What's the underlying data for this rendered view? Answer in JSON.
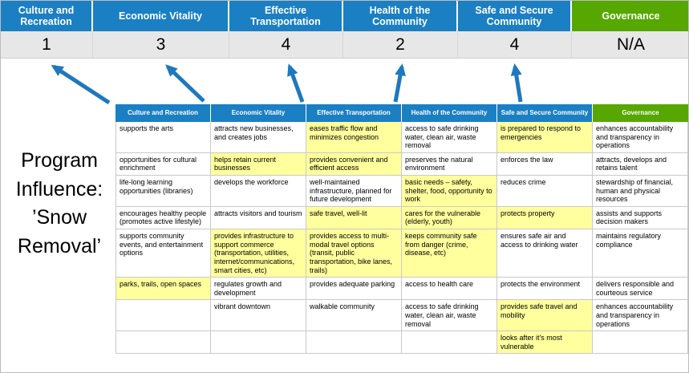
{
  "colors": {
    "header_blue": "#1b7fc3",
    "header_green": "#56a700",
    "highlight": "#ffff9d",
    "score_band_bg": "#e7e7e7",
    "arrow": "#1e78bd",
    "grid_line": "#c9c9c9"
  },
  "program": {
    "lines": [
      "Program",
      "Influence:",
      "’Snow",
      "Removal’"
    ]
  },
  "summary": {
    "columns": [
      {
        "label": "Culture and Recreation",
        "score": "1"
      },
      {
        "label": "Economic Vitality",
        "score": "3"
      },
      {
        "label": "Effective Transportation",
        "score": "4"
      },
      {
        "label": "Health of the Community",
        "score": "2"
      },
      {
        "label": "Safe and Secure Community",
        "score": "4"
      },
      {
        "label": "Governance",
        "score": "N/A"
      }
    ]
  },
  "matrix": {
    "headers": [
      {
        "label": "Culture and Recreation",
        "color": "blue"
      },
      {
        "label": "Economic Vitality",
        "color": "blue"
      },
      {
        "label": "Effective Transportation",
        "color": "blue"
      },
      {
        "label": "Health of the Community",
        "color": "blue"
      },
      {
        "label": "Safe and Secure Community",
        "color": "blue"
      },
      {
        "label": "Governance",
        "color": "green"
      }
    ],
    "rows": [
      [
        {
          "t": "supports the arts",
          "h": false
        },
        {
          "t": "attracts new businesses, and creates jobs",
          "h": false
        },
        {
          "t": "eases traffic flow and minimizes congestion",
          "h": true
        },
        {
          "t": "access to safe drinking water, clean air, waste removal",
          "h": false
        },
        {
          "t": "is prepared to respond to emergencies",
          "h": true
        },
        {
          "t": "enhances accountability and transparency in operations",
          "h": false
        }
      ],
      [
        {
          "t": "opportunities for cultural enrichment",
          "h": false
        },
        {
          "t": "helps retain current businesses",
          "h": true
        },
        {
          "t": "provides convenient and efficient access",
          "h": true
        },
        {
          "t": "preserves the natural environment",
          "h": false
        },
        {
          "t": "enforces the law",
          "h": false
        },
        {
          "t": "attracts, develops and retains talent",
          "h": false
        }
      ],
      [
        {
          "t": "life-long learning opportunities (libraries)",
          "h": false
        },
        {
          "t": "develops the workforce",
          "h": false
        },
        {
          "t": "well-maintained infrastructure, planned for future development",
          "h": false
        },
        {
          "t": "basic needs – safety, shelter, food, opportunity to work",
          "h": true
        },
        {
          "t": "reduces crime",
          "h": false
        },
        {
          "t": "stewardship of financial, human and physical resources",
          "h": false
        }
      ],
      [
        {
          "t": "encourages healthy people (promotes active lifestyle)",
          "h": false
        },
        {
          "t": "attracts visitors and tourism",
          "h": false
        },
        {
          "t": "safe travel, well-lit",
          "h": true
        },
        {
          "t": "cares for the vulnerable (elderly, youth)",
          "h": true
        },
        {
          "t": "protects property",
          "h": true
        },
        {
          "t": "assists and supports decision makers",
          "h": false
        }
      ],
      [
        {
          "t": "supports community events, and entertainment options",
          "h": false
        },
        {
          "t": "provides infrastructure to support commerce (transportation, utilities, internet/communications, smart cities, etc)",
          "h": true
        },
        {
          "t": "provides access to multi-modal travel options (transit, public transportation, bike lanes, trails)",
          "h": true
        },
        {
          "t": "keeps community safe from danger (crime, disease, etc)",
          "h": true
        },
        {
          "t": "ensures safe air and access to drinking water",
          "h": false
        },
        {
          "t": "maintains regulatory compliance",
          "h": false
        }
      ],
      [
        {
          "t": "parks, trails, open spaces",
          "h": true
        },
        {
          "t": "regulates growth and development",
          "h": false
        },
        {
          "t": "provides adequate parking",
          "h": false
        },
        {
          "t": "access to health care",
          "h": false
        },
        {
          "t": "protects the environment",
          "h": false
        },
        {
          "t": "delivers responsible and courteous service",
          "h": false
        }
      ],
      [
        {
          "t": "",
          "h": false
        },
        {
          "t": "vibrant downtown",
          "h": false
        },
        {
          "t": "walkable community",
          "h": false
        },
        {
          "t": "access to safe drinking water, clean air, waste removal",
          "h": false
        },
        {
          "t": "provides safe travel and mobility",
          "h": true
        },
        {
          "t": "enhances accountability and transparency in operations",
          "h": false
        }
      ],
      [
        {
          "t": "",
          "h": false
        },
        {
          "t": "",
          "h": false
        },
        {
          "t": "",
          "h": false
        },
        {
          "t": "",
          "h": false
        },
        {
          "t": "looks after it's most vulnerable",
          "h": true
        },
        {
          "t": "",
          "h": false
        }
      ]
    ]
  }
}
